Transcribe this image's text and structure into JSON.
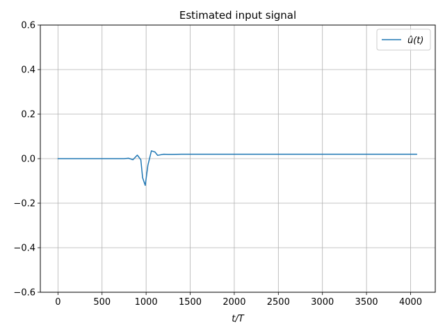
{
  "chart_data": {
    "type": "line",
    "title": "Estimated input signal",
    "xlabel": "t/T",
    "ylabel": "",
    "xlim": [
      -200,
      4280
    ],
    "ylim": [
      -0.6,
      0.6
    ],
    "xticks": [
      0,
      500,
      1000,
      1500,
      2000,
      2500,
      3000,
      3500,
      4000
    ],
    "yticks": [
      -0.6,
      -0.4,
      -0.2,
      0.0,
      0.2,
      0.4,
      0.6
    ],
    "xtick_labels": [
      "0",
      "500",
      "1000",
      "1500",
      "2000",
      "2500",
      "3000",
      "3500",
      "4000"
    ],
    "ytick_labels": [
      "−0.6",
      "−0.4",
      "−0.2",
      "0.0",
      "0.2",
      "0.4",
      "0.6"
    ],
    "grid": true,
    "legend_position": "top-right",
    "series": [
      {
        "name": "û(t)",
        "color": "#1f77b4",
        "x": [
          0,
          100,
          200,
          300,
          400,
          500,
          600,
          700,
          750,
          800,
          850,
          900,
          940,
          960,
          990,
          1020,
          1060,
          1100,
          1130,
          1160,
          1200,
          1250,
          1300,
          1400,
          1600,
          2000,
          2500,
          3000,
          3500,
          4000,
          4070
        ],
        "y": [
          0.0,
          0.0,
          0.0,
          0.0,
          0.0,
          0.0,
          0.0,
          0.0,
          0.0,
          0.002,
          -0.005,
          0.016,
          -0.005,
          -0.085,
          -0.12,
          -0.03,
          0.035,
          0.03,
          0.015,
          0.017,
          0.02,
          0.019,
          0.019,
          0.02,
          0.02,
          0.02,
          0.02,
          0.02,
          0.02,
          0.02,
          0.02
        ]
      }
    ]
  }
}
